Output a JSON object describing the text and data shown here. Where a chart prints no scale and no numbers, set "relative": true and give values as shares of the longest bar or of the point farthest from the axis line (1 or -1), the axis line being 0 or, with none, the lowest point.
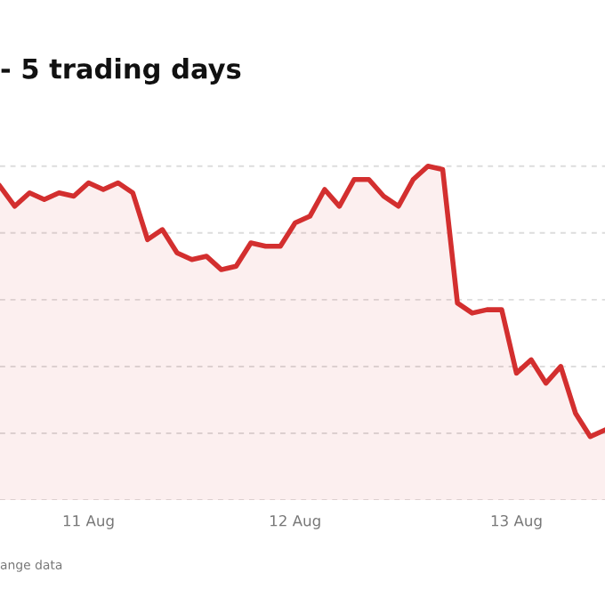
{
  "chart_data": {
    "type": "area",
    "title": "- 5 trading days",
    "annotations": [
      "ange data"
    ],
    "relative": true,
    "grid": "y",
    "categories": [
      null,
      null,
      null,
      null,
      null,
      null,
      "11 Aug",
      null,
      null,
      null,
      null,
      null,
      null,
      null,
      null,
      null,
      null,
      null,
      null,
      null,
      "12 Aug",
      null,
      null,
      null,
      null,
      null,
      null,
      null,
      null,
      null,
      null,
      null,
      null,
      null,
      null,
      "13 Aug",
      null,
      null,
      null,
      null,
      null,
      null
    ],
    "series": [
      {
        "color": "#d32f2f",
        "values": [
          0.94,
          0.88,
          0.92,
          0.9,
          0.92,
          0.91,
          0.95,
          0.93,
          0.95,
          0.92,
          0.78,
          0.81,
          0.74,
          0.72,
          0.73,
          0.69,
          0.7,
          0.77,
          0.76,
          0.76,
          0.83,
          0.85,
          0.93,
          0.88,
          0.96,
          0.96,
          0.91,
          0.88,
          0.96,
          1.0,
          0.99,
          0.59,
          0.56,
          0.57,
          0.57,
          0.38,
          0.42,
          0.35,
          0.4,
          0.26,
          0.19,
          0.21
        ]
      }
    ]
  }
}
